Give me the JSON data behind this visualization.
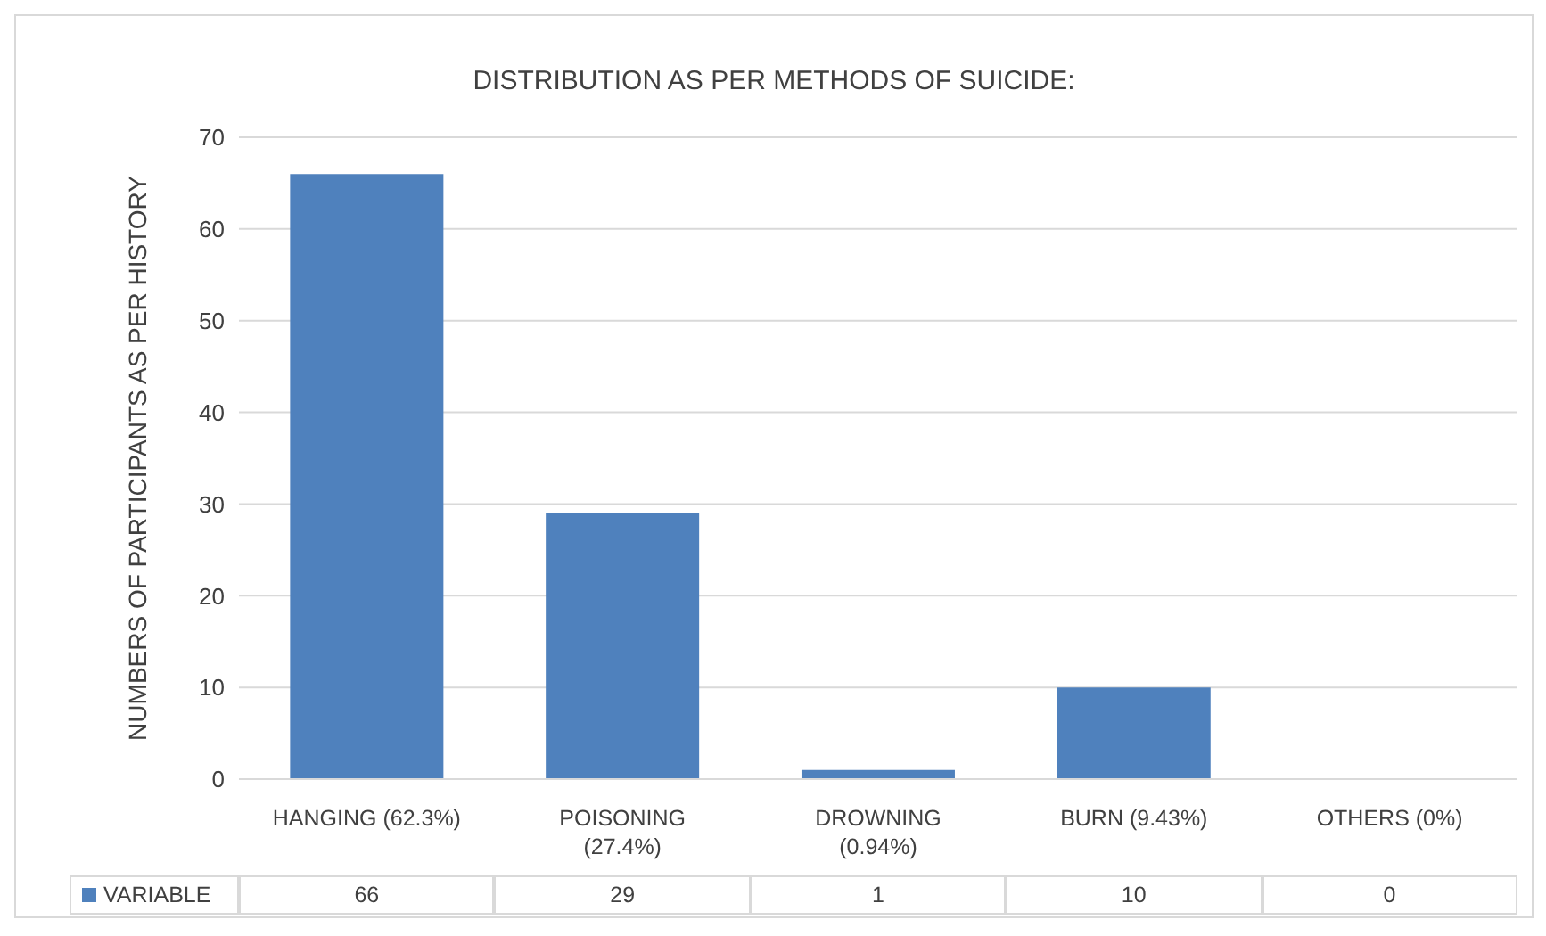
{
  "chart_data": {
    "type": "bar",
    "title": "DISTRIBUTION AS PER METHODS OF SUICIDE:",
    "ylabel": "NUMBERS OF PARTICIPANTS AS PER HISTORY",
    "categories": [
      "HANGING (62.3%)",
      "POISONING (27.4%)",
      "DROWNING (0.94%)",
      "BURN (9.43%)",
      "OTHERS (0%)"
    ],
    "series": [
      {
        "name": "VARIABLE",
        "color": "#4f81bd",
        "values": [
          66,
          29,
          1,
          10,
          0
        ]
      }
    ],
    "ylim": [
      0,
      70
    ],
    "yticks": [
      0,
      10,
      20,
      30,
      40,
      50,
      60,
      70
    ],
    "grid": "y",
    "data_labels": true,
    "legend": "bottom left"
  }
}
